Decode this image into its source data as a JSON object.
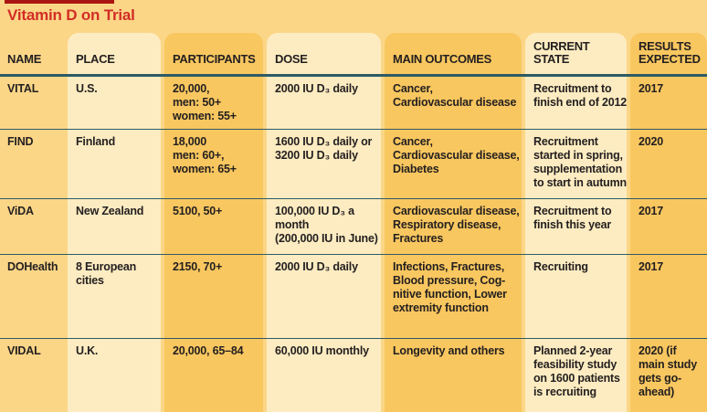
{
  "title": "Vitamin D on Trial",
  "colors": {
    "base_bg": "#fbd687",
    "light_strip": "#fdecc1",
    "dark_strip": "#f9c75f",
    "divider_teal": "#2d5a66",
    "title_red": "#d22d26",
    "top_bar_red": "#a91511",
    "text_dark": "#231f20"
  },
  "chart_data": {
    "type": "table",
    "title": "Vitamin D on Trial",
    "columns": [
      "NAME",
      "PLACE",
      "PARTICIPANTS",
      "DOSE",
      "MAIN OUTCOMES",
      "CURRENT STATE",
      "RESULTS EXPECTED"
    ],
    "rows": [
      {
        "name": "VITAL",
        "place": "U.S.",
        "participants": "20,000,\nmen: 50+\nwomen: 55+",
        "dose": "2000 IU D₃ daily",
        "outcomes": "Cancer,\nCardiovascular disease",
        "state": "Recruitment to\nfinish end of 2012",
        "results": "2017"
      },
      {
        "name": "FIND",
        "place": "Finland",
        "participants": "18,000\nmen: 60+,\nwomen: 65+",
        "dose": "1600 IU D₃ daily or\n3200 IU D₃ daily",
        "outcomes": "Cancer,\nCardiovascular disease,\nDiabetes",
        "state": "Recruitment\nstarted in spring,\nsupplementation\nto start in autumn",
        "results": "2020"
      },
      {
        "name": "ViDA",
        "place": "New Zealand",
        "participants": "5100, 50+",
        "dose": "100,000 IU D₃ a\nmonth\n(200,000 IU in June)",
        "outcomes": "Cardiovascular disease,\nRespiratory disease,\nFractures",
        "state": "Recruitment to\nfinish this year",
        "results": "2017"
      },
      {
        "name": "DOHealth",
        "place": "8 European\ncities",
        "participants": "2150, 70+",
        "dose": "2000 IU D₃ daily",
        "outcomes": "Infections, Fractures,\nBlood pressure, Cog-\nnitive function, Lower\nextremity function",
        "state": "Recruiting",
        "results": "2017"
      },
      {
        "name": "VIDAL",
        "place": "U.K.",
        "participants": "20,000, 65–84",
        "dose": "60,000 IU monthly",
        "outcomes": "Longevity and others",
        "state": "Planned 2-year\nfeasibility study\non 1600 patients\nis recruiting",
        "results": "2020 (if\nmain study\ngets go-\nahead)"
      }
    ]
  }
}
